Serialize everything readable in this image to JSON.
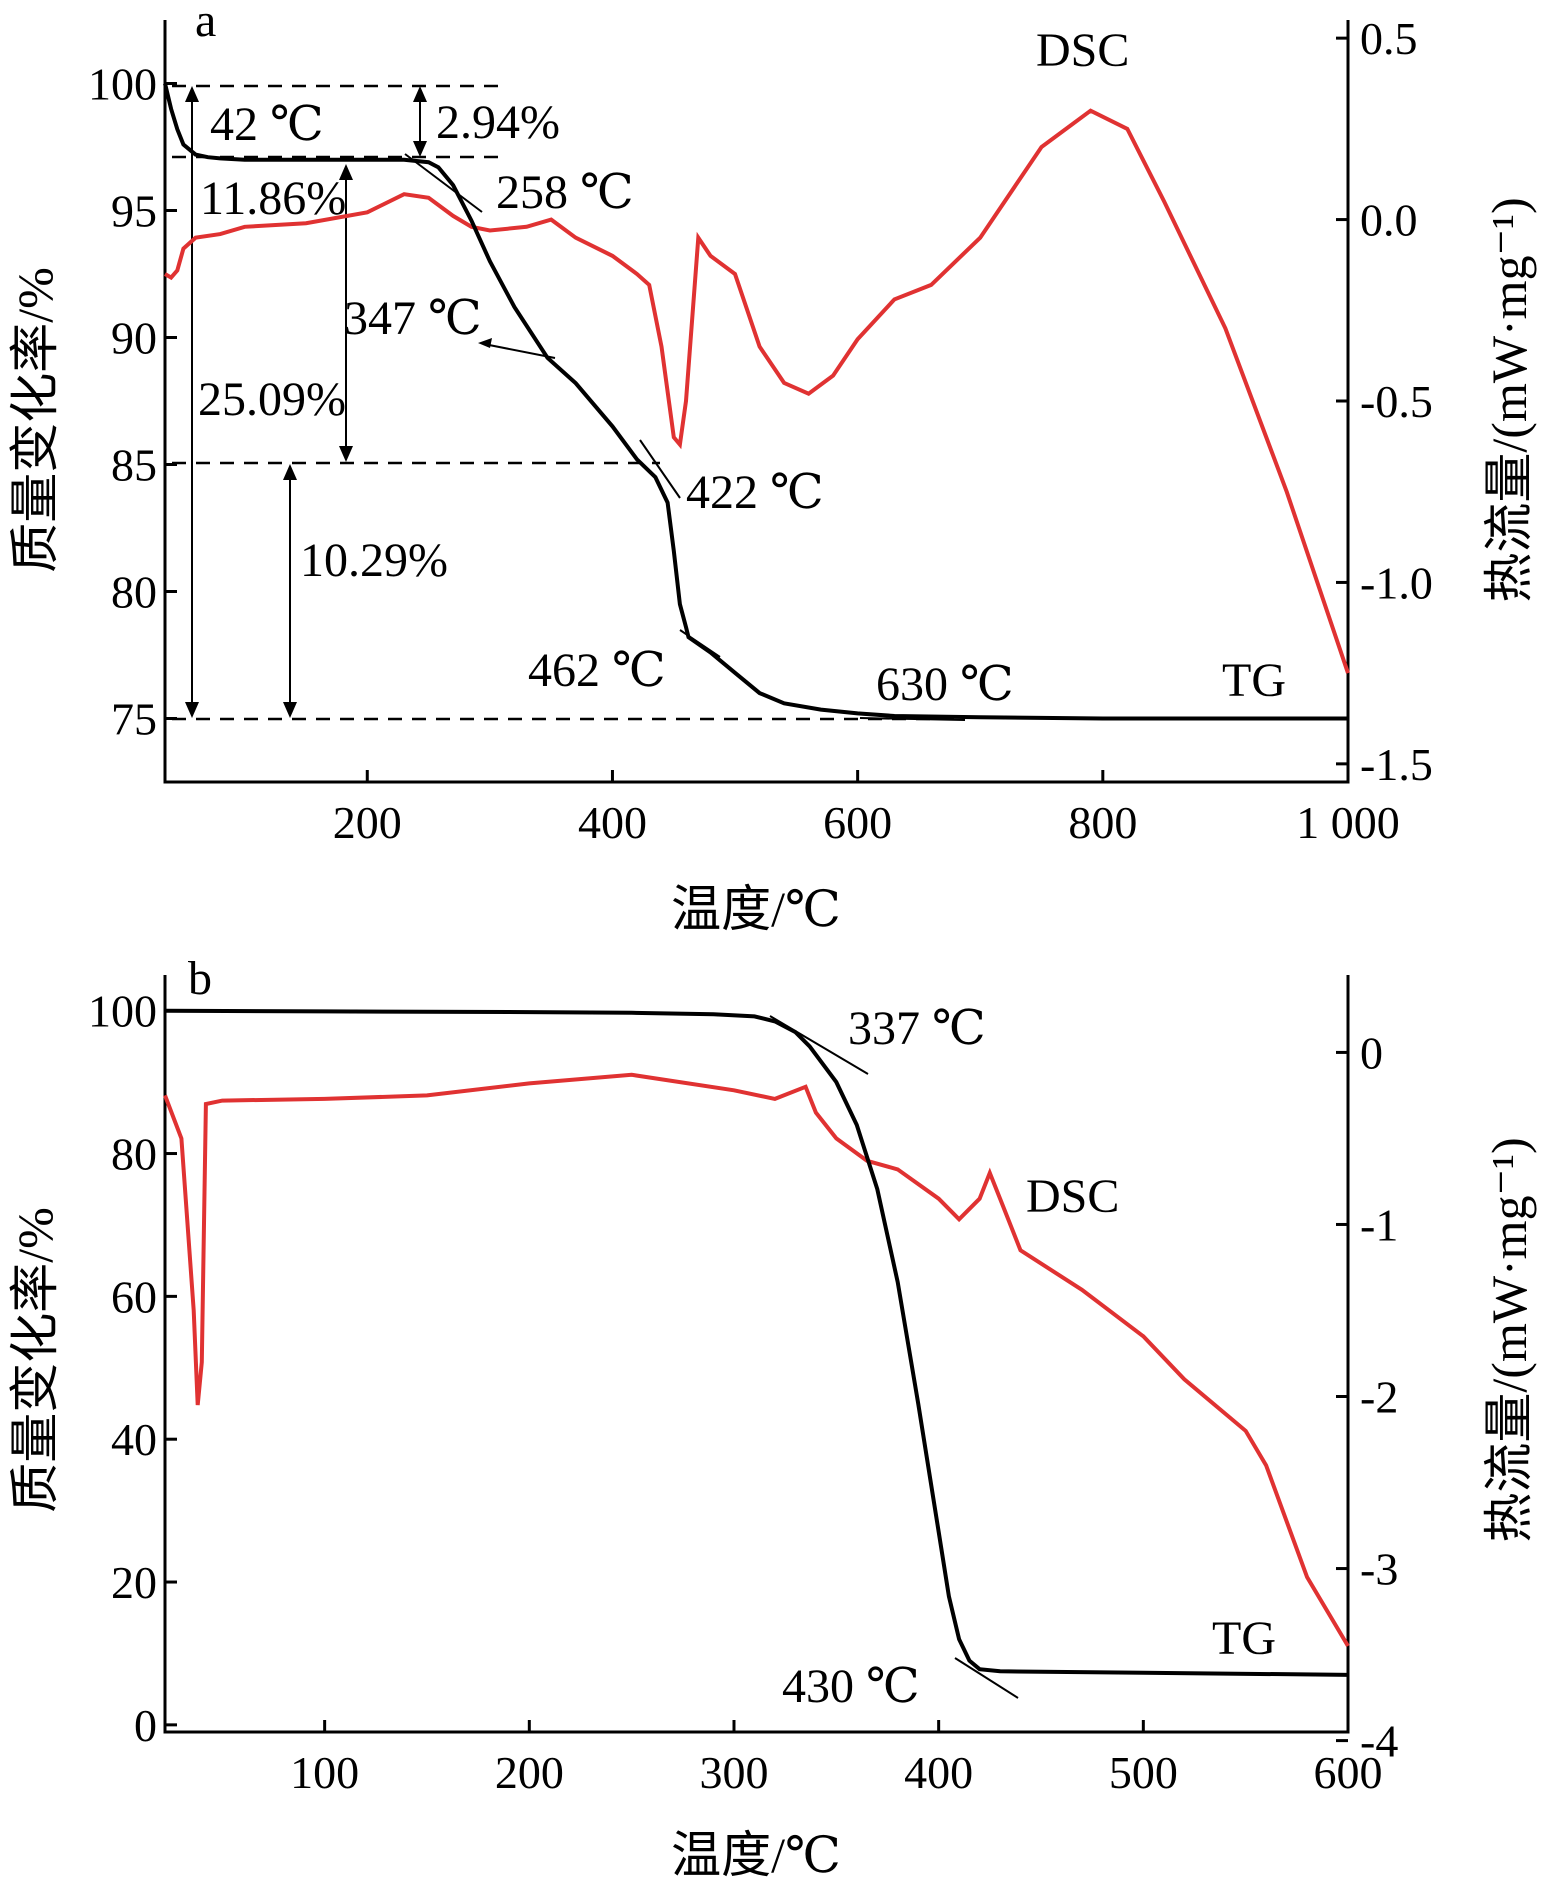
{
  "chart_data": [
    {
      "type": "line",
      "panel_label": "a",
      "xlabel": "温度/℃",
      "ylabel_left": "质量变化率/%",
      "ylabel_right": "热流量/(mW·mg⁻¹)",
      "xlim": [
        35,
        1000
      ],
      "ylim_left": [
        72.5,
        102.5
      ],
      "ylim_right": [
        -1.55,
        0.55
      ],
      "x_ticks": [
        200,
        400,
        600,
        800,
        1000
      ],
      "x_tick_labels": [
        "200",
        "400",
        "600",
        "800",
        "1 000"
      ],
      "y_left_ticks": [
        75,
        80,
        85,
        90,
        95,
        100
      ],
      "y_right_ticks": [
        -1.5,
        -1.0,
        -0.5,
        0.0,
        0.5
      ],
      "y_right_tick_labels": [
        "-1.5",
        "-1.0",
        "-0.5",
        "0.0",
        "0.5"
      ],
      "series": [
        {
          "name": "TG",
          "axis": "left",
          "color": "#000000",
          "x": [
            35,
            40,
            45,
            50,
            60,
            70,
            80,
            100,
            150,
            200,
            230,
            250,
            258,
            270,
            285,
            300,
            320,
            347,
            370,
            400,
            420,
            435,
            445,
            450,
            455,
            460,
            462,
            480,
            500,
            520,
            540,
            570,
            600,
            630,
            700,
            800,
            1000
          ],
          "y": [
            100,
            99.0,
            98.2,
            97.6,
            97.2,
            97.1,
            97.05,
            97.0,
            97.0,
            97.0,
            97.0,
            96.9,
            96.7,
            96.0,
            94.6,
            93.0,
            91.2,
            89.2,
            88.2,
            86.5,
            85.2,
            84.5,
            83.5,
            81.6,
            79.5,
            78.6,
            78.2,
            77.6,
            76.8,
            76.0,
            75.6,
            75.35,
            75.2,
            75.1,
            75.05,
            75.0,
            75.0
          ]
        },
        {
          "name": "DSC",
          "axis": "right",
          "color": "#e03232",
          "x": [
            35,
            40,
            45,
            50,
            60,
            80,
            100,
            150,
            200,
            230,
            250,
            270,
            285,
            300,
            330,
            350,
            370,
            400,
            420,
            430,
            440,
            450,
            455,
            460,
            470,
            480,
            500,
            520,
            540,
            560,
            580,
            600,
            630,
            660,
            700,
            750,
            790,
            820,
            850,
            900,
            950,
            980,
            1000
          ],
          "y": [
            -0.15,
            -0.16,
            -0.14,
            -0.08,
            -0.05,
            -0.04,
            -0.02,
            -0.01,
            0.02,
            0.07,
            0.06,
            0.01,
            -0.02,
            -0.03,
            -0.02,
            0.0,
            -0.05,
            -0.1,
            -0.15,
            -0.18,
            -0.35,
            -0.6,
            -0.62,
            -0.5,
            -0.05,
            -0.1,
            -0.15,
            -0.35,
            -0.45,
            -0.48,
            -0.43,
            -0.33,
            -0.22,
            -0.18,
            -0.05,
            0.2,
            0.3,
            0.25,
            0.05,
            -0.3,
            -0.75,
            -1.05,
            -1.25
          ]
        }
      ],
      "annotations": [
        "42 ℃",
        "2.94%",
        "258 ℃",
        "11.86%",
        "347 ℃",
        "25.09%",
        "422 ℃",
        "10.29%",
        "462 ℃",
        "630 ℃"
      ],
      "series_labels": [
        "DSC",
        "TG"
      ],
      "grid": false
    },
    {
      "type": "line",
      "panel_label": "b",
      "xlabel": "温度/℃",
      "ylabel_left": "质量变化率/%",
      "ylabel_right": "热流量/(mW·mg⁻¹)",
      "xlim": [
        22,
        600
      ],
      "ylim_left": [
        -1,
        105
      ],
      "ylim_right": [
        -3.95,
        0.45
      ],
      "x_ticks": [
        100,
        200,
        300,
        400,
        500,
        600
      ],
      "x_tick_labels": [
        "100",
        "200",
        "300",
        "400",
        "500",
        "600"
      ],
      "y_left_ticks": [
        0,
        20,
        40,
        60,
        80,
        100
      ],
      "y_right_ticks": [
        -4,
        -3,
        -2,
        -1,
        0
      ],
      "y_right_tick_labels": [
        "-4",
        "-3",
        "-2",
        "-1",
        "0"
      ],
      "series": [
        {
          "name": "TG",
          "axis": "left",
          "color": "#000000",
          "x": [
            22,
            100,
            200,
            250,
            290,
            310,
            320,
            330,
            337,
            350,
            360,
            370,
            380,
            390,
            400,
            405,
            410,
            415,
            420,
            430,
            500,
            600
          ],
          "y": [
            100,
            99.9,
            99.8,
            99.7,
            99.5,
            99.2,
            98.5,
            97.0,
            95.0,
            90.0,
            84.0,
            75.0,
            62.0,
            45.0,
            27.0,
            18.0,
            12.0,
            9.0,
            7.8,
            7.5,
            7.3,
            7.0
          ]
        },
        {
          "name": "DSC",
          "axis": "right",
          "color": "#e03232",
          "x": [
            22,
            30,
            36,
            38,
            40,
            42,
            50,
            100,
            150,
            200,
            250,
            300,
            320,
            335,
            340,
            350,
            365,
            380,
            400,
            410,
            420,
            425,
            430,
            440,
            470,
            500,
            520,
            550,
            560,
            580,
            600
          ],
          "y": [
            -0.25,
            -0.5,
            -1.5,
            -2.05,
            -1.8,
            -0.3,
            -0.28,
            -0.27,
            -0.25,
            -0.18,
            -0.13,
            -0.22,
            -0.27,
            -0.2,
            -0.35,
            -0.5,
            -0.63,
            -0.68,
            -0.85,
            -0.97,
            -0.85,
            -0.7,
            -0.85,
            -1.15,
            -1.38,
            -1.65,
            -1.9,
            -2.2,
            -2.4,
            -3.05,
            -3.45
          ]
        }
      ],
      "annotations": [
        "337 ℃",
        "430 ℃"
      ],
      "series_labels": [
        "DSC",
        "TG"
      ],
      "grid": false
    }
  ]
}
